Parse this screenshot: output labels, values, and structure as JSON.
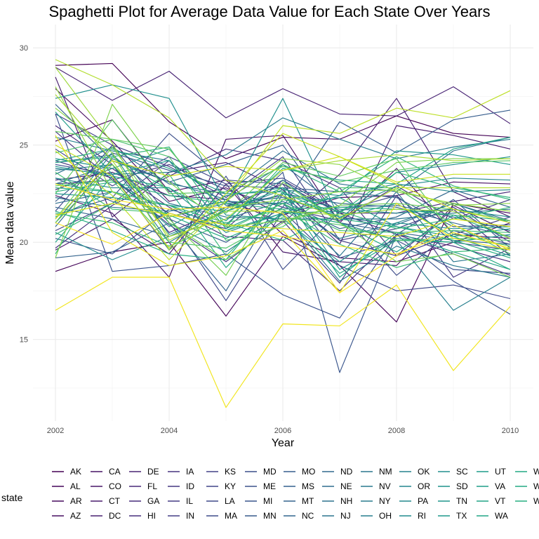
{
  "chart_data": {
    "type": "line",
    "title": "Spaghetti Plot for Average Data Value for Each State Over Years",
    "xlabel": "Year",
    "ylabel": "Mean data value",
    "xlim": [
      2002,
      2010
    ],
    "ylim": [
      10.8,
      31.2
    ],
    "x_ticks": [
      2002,
      2004,
      2006,
      2008,
      2010
    ],
    "y_ticks": [
      15,
      20,
      25,
      30
    ],
    "grid": true,
    "legend_position": "bottom",
    "legend_title": "state",
    "x": [
      2002,
      2003,
      2004,
      2005,
      2006,
      2007,
      2008,
      2009,
      2010
    ],
    "series": [
      {
        "name": "AK",
        "color": "#440154",
        "values": [
          29.1,
          29.2,
          26.2,
          24.3,
          25.4,
          25.3,
          26.5,
          25.6,
          25.4
        ]
      },
      {
        "name": "AL",
        "color": "#450559",
        "values": [
          18.5,
          19.5,
          20.0,
          16.2,
          20.3,
          18.8,
          15.9,
          22.0,
          21.5
        ]
      },
      {
        "name": "AR",
        "color": "#460a5d",
        "values": [
          25.2,
          26.3,
          22.6,
          23.2,
          20.4,
          19.2,
          19.0,
          20.0,
          21.0
        ]
      },
      {
        "name": "AZ",
        "color": "#470e61",
        "values": [
          27.9,
          25.2,
          22.1,
          22.8,
          21.4,
          22.3,
          22.4,
          23.1,
          23.0
        ]
      },
      {
        "name": "CA",
        "color": "#471365",
        "values": [
          22.4,
          21.5,
          18.2,
          25.3,
          25.5,
          21.0,
          23.8,
          20.4,
          20.2
        ]
      },
      {
        "name": "CO",
        "color": "#481769",
        "values": [
          19.6,
          21.2,
          19.4,
          23.0,
          19.5,
          19.0,
          18.8,
          21.9,
          20.5
        ]
      },
      {
        "name": "CT",
        "color": "#481b6d",
        "values": [
          28.5,
          21.3,
          23.6,
          24.1,
          22.7,
          19.9,
          26.0,
          25.5,
          24.8
        ]
      },
      {
        "name": "DC",
        "color": "#482071",
        "values": [
          23.2,
          23.6,
          22.4,
          22.2,
          21.0,
          23.5,
          27.4,
          22.6,
          21.3
        ]
      },
      {
        "name": "DE",
        "color": "#482374",
        "values": [
          29.0,
          27.3,
          28.8,
          26.4,
          27.9,
          26.6,
          26.5,
          28.0,
          26.1
        ]
      },
      {
        "name": "FL",
        "color": "#482878",
        "values": [
          26.0,
          24.0,
          20.5,
          21.8,
          23.0,
          21.5,
          21.5,
          22.1,
          22.6
        ]
      },
      {
        "name": "GA",
        "color": "#472c7a",
        "values": [
          22.7,
          23.8,
          21.8,
          20.3,
          20.1,
          17.5,
          20.4,
          19.8,
          19.0
        ]
      },
      {
        "name": "HI",
        "color": "#472f7d",
        "values": [
          19.7,
          21.9,
          23.4,
          24.8,
          24.2,
          22.8,
          19.3,
          21.7,
          19.3
        ]
      },
      {
        "name": "IA",
        "color": "#46337f",
        "values": [
          25.7,
          23.2,
          21.5,
          20.7,
          23.2,
          21.5,
          20.4,
          19.4,
          18.3
        ]
      },
      {
        "name": "ID",
        "color": "#453781",
        "values": [
          24.2,
          23.3,
          20.9,
          19.0,
          21.1,
          17.9,
          22.4,
          18.2,
          19.7
        ]
      },
      {
        "name": "IL",
        "color": "#443a83",
        "values": [
          23.0,
          23.2,
          24.0,
          22.7,
          21.8,
          21.1,
          22.9,
          21.2,
          22.2
        ]
      },
      {
        "name": "IN",
        "color": "#433e85",
        "values": [
          20.6,
          22.0,
          24.2,
          21.9,
          22.4,
          20.1,
          20.7,
          21.8,
          20.0
        ]
      },
      {
        "name": "KS",
        "color": "#424086",
        "values": [
          26.6,
          25.0,
          23.9,
          22.3,
          24.4,
          20.1,
          19.3,
          20.4,
          21.3
        ]
      },
      {
        "name": "KY",
        "color": "#404588",
        "values": [
          24.8,
          22.9,
          24.4,
          23.0,
          23.3,
          21.6,
          22.4,
          20.0,
          19.6
        ]
      },
      {
        "name": "LA",
        "color": "#3f4889",
        "values": [
          21.6,
          25.0,
          21.3,
          17.0,
          21.6,
          18.8,
          17.5,
          17.8,
          17.1
        ]
      },
      {
        "name": "MA",
        "color": "#3e4c8a",
        "values": [
          24.0,
          23.5,
          19.6,
          23.4,
          18.6,
          21.6,
          18.3,
          20.6,
          19.9
        ]
      },
      {
        "name": "MD",
        "color": "#3c4f8a",
        "values": [
          21.4,
          22.3,
          25.6,
          23.2,
          23.0,
          19.2,
          20.1,
          18.6,
          18.4
        ]
      },
      {
        "name": "ME",
        "color": "#3b528b",
        "values": [
          26.6,
          18.5,
          18.8,
          19.4,
          17.3,
          16.1,
          20.4,
          18.0,
          16.3
        ]
      },
      {
        "name": "MI",
        "color": "#39558c",
        "values": [
          20.2,
          19.4,
          21.7,
          20.9,
          23.6,
          13.3,
          20.4,
          22.2,
          19.7
        ]
      },
      {
        "name": "MN",
        "color": "#375a8c",
        "values": [
          22.1,
          24.6,
          23.7,
          22.9,
          22.8,
          22.6,
          22.3,
          20.8,
          20.9
        ]
      },
      {
        "name": "MO",
        "color": "#365d8d",
        "values": [
          23.3,
          22.1,
          21.2,
          20.0,
          21.8,
          26.2,
          24.6,
          26.3,
          26.8
        ]
      },
      {
        "name": "MS",
        "color": "#34608d",
        "values": [
          27.1,
          24.2,
          23.1,
          24.0,
          25.0,
          21.0,
          20.5,
          20.1,
          19.9
        ]
      },
      {
        "name": "MT",
        "color": "#33638d",
        "values": [
          19.2,
          19.5,
          21.0,
          17.5,
          22.5,
          22.0,
          21.8,
          21.0,
          20.3
        ]
      },
      {
        "name": "NC",
        "color": "#31668e",
        "values": [
          21.8,
          21.2,
          20.3,
          21.2,
          22.1,
          20.7,
          21.3,
          22.7,
          21.8
        ]
      },
      {
        "name": "ND",
        "color": "#30698e",
        "values": [
          20.8,
          24.3,
          23.1,
          22.2,
          24.0,
          21.8,
          21.9,
          21.3,
          20.6
        ]
      },
      {
        "name": "NE",
        "color": "#2e6c8e",
        "values": [
          22.0,
          22.6,
          21.3,
          22.0,
          22.3,
          21.3,
          20.9,
          22.0,
          21.1
        ]
      },
      {
        "name": "NH",
        "color": "#2d708e",
        "values": [
          23.5,
          24.9,
          23.0,
          22.5,
          24.7,
          23.0,
          22.6,
          24.7,
          25.4
        ]
      },
      {
        "name": "NJ",
        "color": "#2c738e",
        "values": [
          24.1,
          24.5,
          22.0,
          21.3,
          21.2,
          21.2,
          21.2,
          21.5,
          21.7
        ]
      },
      {
        "name": "NM",
        "color": "#2a768e",
        "values": [
          22.3,
          21.8,
          21.6,
          22.1,
          22.0,
          19.3,
          22.6,
          19.0,
          19.4
        ]
      },
      {
        "name": "NV",
        "color": "#29798e",
        "values": [
          23.0,
          24.0,
          21.0,
          19.5,
          21.5,
          18.0,
          19.8,
          18.8,
          18.2
        ]
      },
      {
        "name": "NY",
        "color": "#287c8e",
        "values": [
          23.8,
          23.5,
          23.6,
          24.5,
          26.4,
          25.3,
          24.3,
          24.9,
          25.3
        ]
      },
      {
        "name": "OH",
        "color": "#277f8e",
        "values": [
          23.7,
          24.0,
          20.0,
          21.7,
          23.2,
          21.0,
          20.1,
          16.5,
          18.2
        ]
      },
      {
        "name": "OK",
        "color": "#25828e",
        "values": [
          25.4,
          24.7,
          24.2,
          21.9,
          22.0,
          20.2,
          21.0,
          22.0,
          21.0
        ]
      },
      {
        "name": "OR",
        "color": "#24868e",
        "values": [
          21.0,
          24.6,
          20.4,
          21.6,
          22.7,
          22.4,
          23.0,
          22.6,
          22.7
        ]
      },
      {
        "name": "PA",
        "color": "#23898e",
        "values": [
          23.3,
          22.8,
          22.8,
          20.5,
          21.5,
          21.6,
          22.9,
          23.3,
          23.2
        ]
      },
      {
        "name": "RI",
        "color": "#218c8d",
        "values": [
          20.5,
          19.1,
          20.3,
          21.6,
          22.5,
          21.7,
          21.5,
          21.7,
          21.3
        ]
      },
      {
        "name": "SC",
        "color": "#208f8d",
        "values": [
          27.4,
          28.1,
          27.4,
          22.0,
          27.4,
          21.2,
          23.6,
          24.0,
          24.4
        ]
      },
      {
        "name": "SD",
        "color": "#1f928c",
        "values": [
          24.3,
          23.8,
          24.8,
          21.4,
          21.2,
          19.0,
          21.0,
          20.7,
          20.8
        ]
      },
      {
        "name": "TN",
        "color": "#1f958b",
        "values": [
          23.9,
          23.4,
          20.8,
          22.4,
          22.8,
          18.6,
          20.2,
          20.0,
          20.4
        ]
      },
      {
        "name": "TX",
        "color": "#1f988b",
        "values": [
          22.5,
          22.3,
          21.9,
          20.6,
          21.5,
          22.4,
          24.7,
          24.5,
          24.0
        ]
      },
      {
        "name": "UT",
        "color": "#1e9b8a",
        "values": [
          26.7,
          23.5,
          24.2,
          20.7,
          22.0,
          22.3,
          20.8,
          20.3,
          20.7
        ]
      },
      {
        "name": "VA",
        "color": "#1f9e89",
        "values": [
          21.3,
          22.6,
          21.9,
          21.6,
          22.8,
          21.3,
          22.0,
          20.3,
          19.3
        ]
      },
      {
        "name": "VT",
        "color": "#20a386",
        "values": [
          24.2,
          24.8,
          23.8,
          22.5,
          22.6,
          18.2,
          20.5,
          19.5,
          18.6
        ]
      },
      {
        "name": "WA",
        "color": "#21a685",
        "values": [
          20.0,
          23.4,
          22.8,
          21.1,
          23.8,
          23.2,
          23.0,
          24.8,
          25.4
        ]
      },
      {
        "name": "WI",
        "color": "#22a884",
        "values": [
          24.1,
          24.4,
          22.7,
          18.7,
          21.6,
          21.0,
          19.5,
          21.4,
          20.2
        ]
      },
      {
        "name": "WV",
        "color": "#24aa83",
        "values": [
          22.8,
          22.6,
          21.4,
          20.2,
          21.4,
          18.4,
          20.1,
          20.0,
          18.6
        ]
      },
      {
        "name": "WY",
        "color": "#27ad81",
        "values": [
          21.6,
          20.6,
          19.4,
          19.1,
          22.6,
          21.2,
          20.8,
          20.1,
          19.2
        ]
      },
      {
        "name": "",
        "color": "#2ab07f",
        "values": [
          22.6,
          23.1,
          22.4,
          22.0,
          21.7,
          21.8,
          21.7,
          21.4,
          21.1
        ]
      },
      {
        "name": "",
        "color": "#2eb37c",
        "values": [
          23.0,
          22.6,
          21.9,
          21.0,
          20.1,
          21.5,
          23.6,
          22.8,
          22.3
        ]
      },
      {
        "name": "",
        "color": "#32b67a",
        "values": [
          19.4,
          24.4,
          24.9,
          20.8,
          24.0,
          22.6,
          24.4,
          22.9,
          22.2
        ]
      },
      {
        "name": "",
        "color": "#35b779",
        "values": [
          20.4,
          22.0,
          23.5,
          19.3,
          22.2,
          21.6,
          20.7,
          21.2,
          21.8
        ]
      },
      {
        "name": "",
        "color": "#3bbb75",
        "values": [
          21.5,
          21.0,
          19.8,
          21.0,
          21.7,
          19.9,
          18.7,
          19.5,
          19.7
        ]
      },
      {
        "name": "",
        "color": "#42be71",
        "values": [
          23.6,
          21.7,
          21.5,
          20.6,
          22.0,
          20.6,
          20.5,
          20.6,
          20.5
        ]
      },
      {
        "name": "",
        "color": "#4ac16d",
        "values": [
          24.6,
          25.3,
          24.4,
          20.1,
          20.8,
          22.8,
          22.8,
          20.9,
          19.4
        ]
      },
      {
        "name": "",
        "color": "#52c569",
        "values": [
          22.9,
          23.2,
          20.0,
          19.7,
          21.3,
          20.9,
          20.1,
          20.2,
          20.1
        ]
      },
      {
        "name": "",
        "color": "#5ac864",
        "values": [
          22.5,
          26.3,
          22.5,
          22.6,
          23.9,
          23.1,
          23.7,
          24.1,
          24.2
        ]
      },
      {
        "name": "",
        "color": "#63cb5f",
        "values": [
          25.7,
          25.3,
          24.8,
          21.5,
          24.1,
          23.4,
          24.3,
          20.4,
          19.8
        ]
      },
      {
        "name": "",
        "color": "#6ccd5a",
        "values": [
          21.2,
          24.9,
          21.0,
          19.1,
          21.0,
          21.9,
          22.0,
          21.7,
          21.1
        ]
      },
      {
        "name": "",
        "color": "#75d054",
        "values": [
          21.0,
          24.0,
          21.2,
          18.3,
          23.1,
          21.0,
          19.0,
          19.4,
          18.2
        ]
      },
      {
        "name": "",
        "color": "#7fd34e",
        "values": [
          19.2,
          27.1,
          23.1,
          20.8,
          21.1,
          21.9,
          24.1,
          24.3,
          24.3
        ]
      },
      {
        "name": "",
        "color": "#88d548",
        "values": [
          26.9,
          24.6,
          19.6,
          21.8,
          22.2,
          22.6,
          22.7,
          21.9,
          22.0
        ]
      },
      {
        "name": "",
        "color": "#92d742",
        "values": [
          28.0,
          22.6,
          21.3,
          22.1,
          24.3,
          24.0,
          22.6,
          22.0,
          21.6
        ]
      },
      {
        "name": "",
        "color": "#9dd93b",
        "values": [
          29.0,
          25.1,
          20.1,
          21.6,
          21.6,
          21.4,
          21.7,
          21.6,
          20.2
        ]
      },
      {
        "name": "",
        "color": "#a8db34",
        "values": [
          27.6,
          24.2,
          20.3,
          21.2,
          23.7,
          24.2,
          24.5,
          24.2,
          24.3
        ]
      },
      {
        "name": "",
        "color": "#b2dd2d",
        "values": [
          29.4,
          28.1,
          26.4,
          23.2,
          22.4,
          21.2,
          22.8,
          22.8,
          22.8
        ]
      },
      {
        "name": "",
        "color": "#bddf26",
        "values": [
          24.7,
          22.4,
          19.1,
          22.1,
          26.0,
          25.6,
          26.9,
          26.4,
          27.8
        ]
      },
      {
        "name": "",
        "color": "#c8e020",
        "values": [
          25.0,
          23.4,
          19.7,
          22.5,
          25.6,
          24.4,
          23.1,
          23.5,
          23.5
        ]
      },
      {
        "name": "",
        "color": "#d2e21b",
        "values": [
          21.2,
          24.2,
          23.4,
          23.9,
          23.7,
          24.4,
          23.0,
          21.7,
          21.0
        ]
      },
      {
        "name": "",
        "color": "#dde318",
        "values": [
          21.4,
          22.0,
          21.4,
          20.9,
          20.7,
          20.5,
          20.3,
          21.2,
          20.8
        ]
      },
      {
        "name": "",
        "color": "#e7e419",
        "values": [
          25.5,
          20.5,
          18.8,
          19.3,
          20.6,
          17.4,
          22.0,
          20.2,
          19.6
        ]
      },
      {
        "name": "",
        "color": "#f1e51d",
        "values": [
          16.5,
          18.2,
          18.2,
          11.5,
          15.8,
          15.7,
          17.8,
          13.4,
          16.7
        ]
      },
      {
        "name": "",
        "color": "#f8e621",
        "values": [
          21.0,
          19.9,
          21.5,
          20.6,
          20.3,
          19.8,
          19.4,
          20.5,
          19.7
        ]
      },
      {
        "name": "",
        "color": "#fde725",
        "values": [
          23.0,
          22.2,
          21.7,
          21.8,
          21.5,
          17.4,
          19.3,
          20.9,
          19.6
        ]
      }
    ],
    "legend_labels": [
      "AK",
      "AL",
      "AR",
      "AZ",
      "CA",
      "CO",
      "CT",
      "DC",
      "DE",
      "FL",
      "GA",
      "HI",
      "IA",
      "ID",
      "IL",
      "IN",
      "KS",
      "KY",
      "LA",
      "MA",
      "MD",
      "ME",
      "MI",
      "MN",
      "MO",
      "MS",
      "MT",
      "NC",
      "ND",
      "NE",
      "NH",
      "NJ",
      "NM",
      "NV",
      "NY",
      "OH",
      "OK",
      "OR",
      "PA",
      "RI",
      "SC",
      "SD",
      "TN",
      "TX",
      "UT",
      "VA",
      "VT",
      "WA",
      "W",
      "W",
      "W"
    ]
  }
}
